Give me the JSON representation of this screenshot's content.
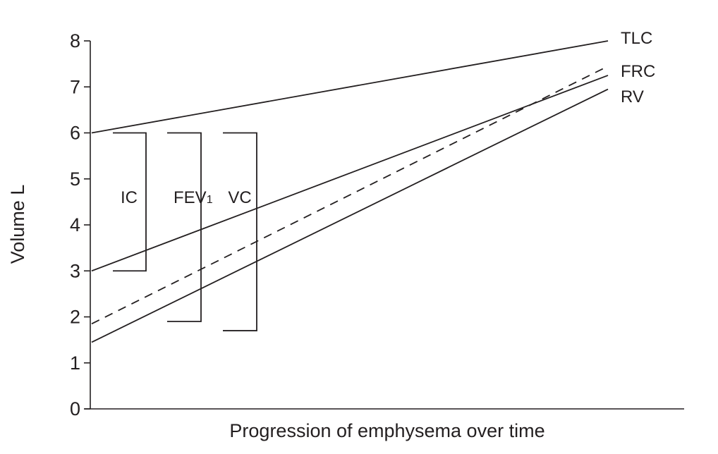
{
  "chart_data": {
    "type": "line",
    "xlabel": "Progression of emphysema over time",
    "ylabel": "Volume L",
    "ylim": [
      0,
      8
    ],
    "yticks": [
      "0",
      "1",
      "2",
      "3",
      "4",
      "5",
      "6",
      "7",
      "8"
    ],
    "xlim": [
      0,
      1
    ],
    "grid": false,
    "legend": "inline labels at right end of lines",
    "series": [
      {
        "name": "TLC",
        "x": [
          0,
          1
        ],
        "values": [
          6.0,
          8.0
        ],
        "style": "solid"
      },
      {
        "name": "FRC",
        "x": [
          0,
          1
        ],
        "values": [
          1.85,
          7.45
        ],
        "style": "dashed"
      },
      {
        "name": "RV",
        "x": [
          0,
          1
        ],
        "values": [
          1.45,
          6.95
        ],
        "style": "solid"
      },
      {
        "name": "",
        "x": [
          0,
          1
        ],
        "values": [
          3.0,
          7.25
        ],
        "style": "solid"
      }
    ],
    "annotations": [
      {
        "label": "IC",
        "subscript": "",
        "top": 6.0,
        "bottom": 3.0
      },
      {
        "label": "FEV",
        "subscript": "1",
        "top": 6.0,
        "bottom": 1.9
      },
      {
        "label": "VC",
        "subscript": "",
        "top": 6.0,
        "bottom": 1.7
      }
    ],
    "colors": {
      "ink": "#231f20",
      "background": "#ffffff"
    }
  }
}
